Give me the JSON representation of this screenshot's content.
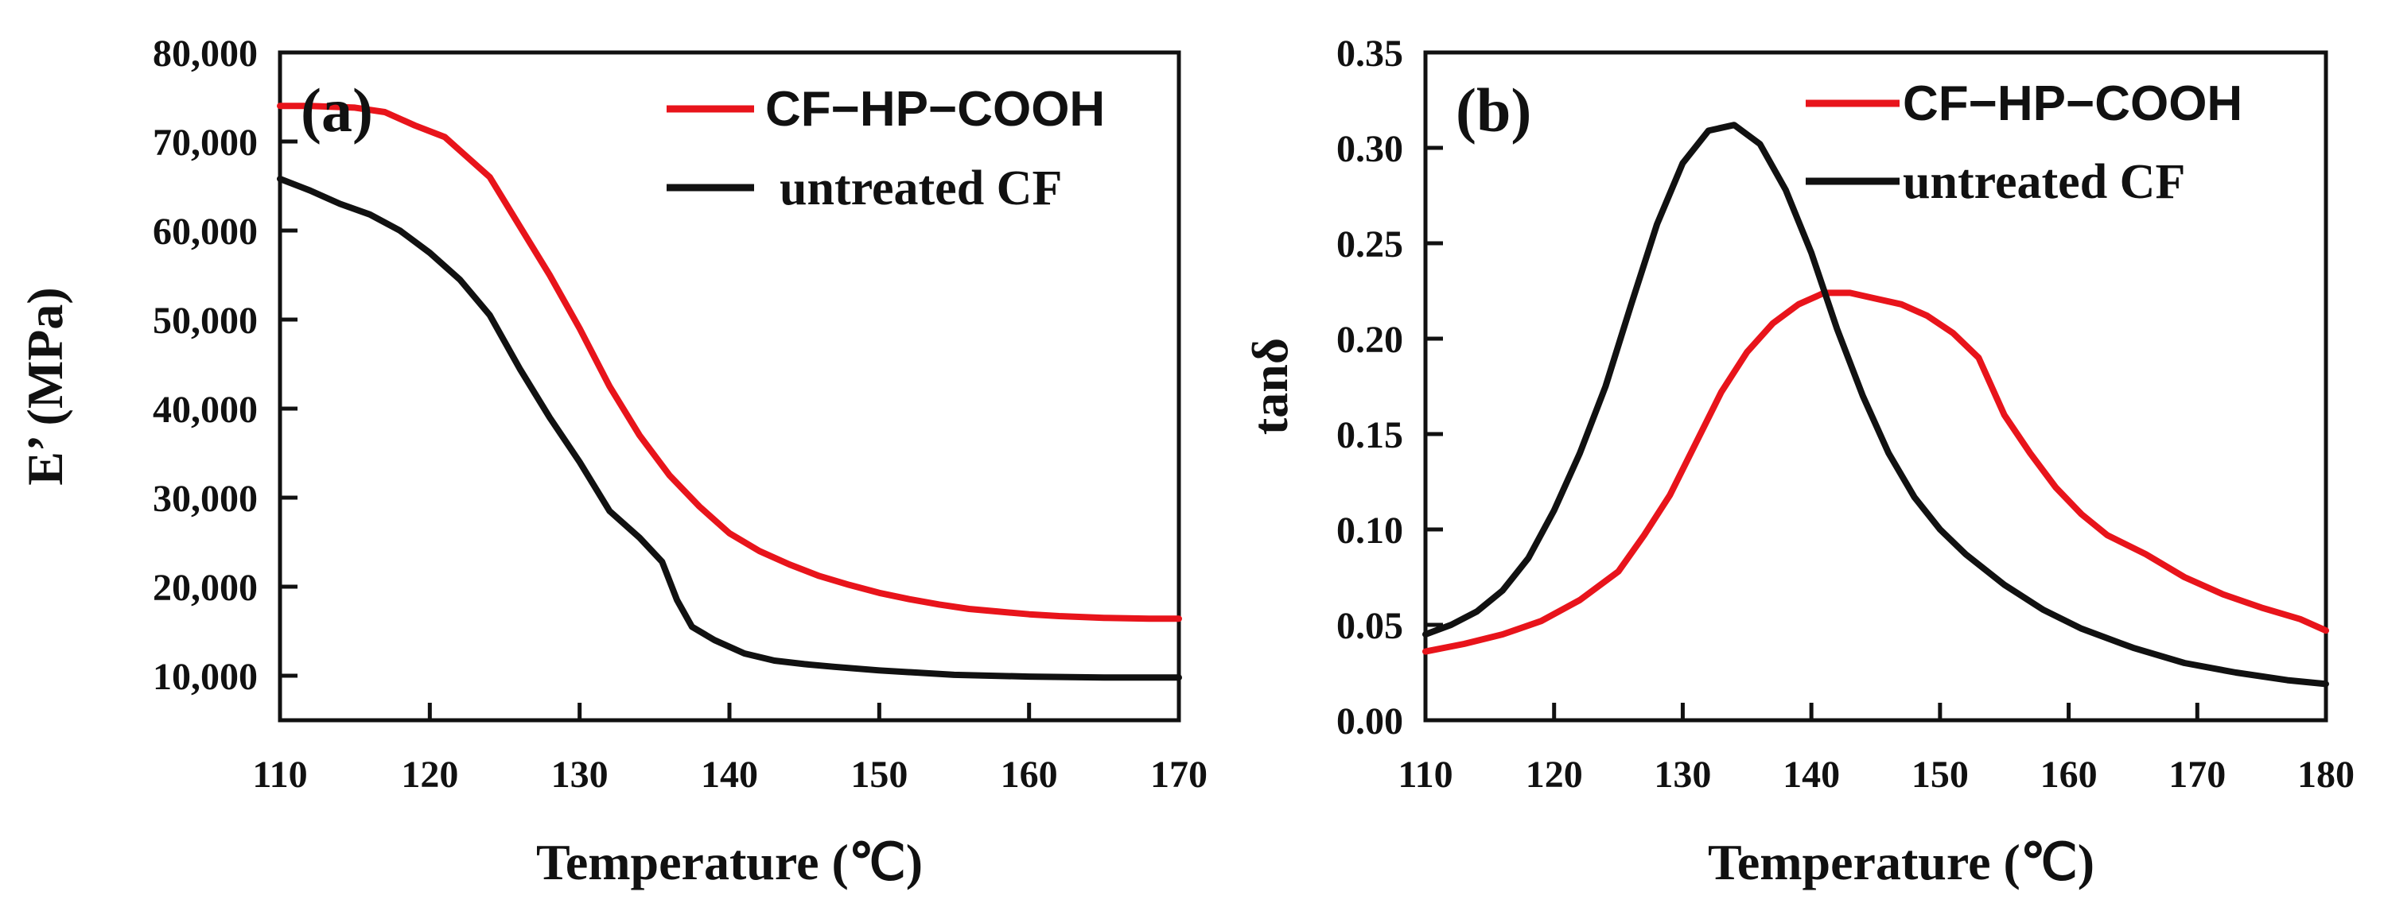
{
  "chart_data": [
    {
      "type": "line",
      "panel_label": "(a)",
      "xlabel": "Temperature (℃)",
      "ylabel": "E’ (MPa)",
      "xlim": [
        110,
        170
      ],
      "ylim": [
        5000,
        80000
      ],
      "x_ticks": [
        "110",
        "120",
        "130",
        "140",
        "150",
        "160",
        "170"
      ],
      "x_tick_values": [
        110,
        120,
        130,
        140,
        150,
        160,
        170
      ],
      "y_ticks": [
        "10,000",
        "20,000",
        "30,000",
        "40,000",
        "50,000",
        "60,000",
        "70,000",
        "80,000"
      ],
      "y_tick_values": [
        10000,
        20000,
        30000,
        40000,
        50000,
        60000,
        70000,
        80000
      ],
      "series": [
        {
          "name": "CF−HP−COOH",
          "color": "#e8141b",
          "points": [
            [
              110,
              74000
            ],
            [
              112,
              74000
            ],
            [
              115,
              73800
            ],
            [
              117,
              73300
            ],
            [
              119,
              71800
            ],
            [
              121,
              70500
            ],
            [
              122,
              69000
            ],
            [
              124,
              66000
            ],
            [
              126,
              60500
            ],
            [
              128,
              55000
            ],
            [
              130,
              49000
            ],
            [
              132,
              42500
            ],
            [
              134,
              37000
            ],
            [
              136,
              32500
            ],
            [
              138,
              29000
            ],
            [
              140,
              26000
            ],
            [
              142,
              24000
            ],
            [
              144,
              22500
            ],
            [
              146,
              21200
            ],
            [
              148,
              20200
            ],
            [
              150,
              19300
            ],
            [
              152,
              18600
            ],
            [
              154,
              18000
            ],
            [
              156,
              17500
            ],
            [
              158,
              17200
            ],
            [
              160,
              16900
            ],
            [
              162,
              16700
            ],
            [
              165,
              16500
            ],
            [
              168,
              16400
            ],
            [
              170,
              16400
            ]
          ]
        },
        {
          "name": "untreated CF",
          "color": "#111111",
          "points": [
            [
              110,
              65800
            ],
            [
              112,
              64500
            ],
            [
              114,
              63000
            ],
            [
              116,
              61800
            ],
            [
              118,
              60000
            ],
            [
              120,
              57500
            ],
            [
              122,
              54500
            ],
            [
              124,
              50500
            ],
            [
              126,
              44500
            ],
            [
              128,
              39000
            ],
            [
              130,
              34000
            ],
            [
              132,
              28500
            ],
            [
              134,
              25500
            ],
            [
              135.5,
              22800
            ],
            [
              136.5,
              18500
            ],
            [
              137.5,
              15500
            ],
            [
              139,
              14000
            ],
            [
              141,
              12500
            ],
            [
              143,
              11700
            ],
            [
              145,
              11300
            ],
            [
              147,
              11000
            ],
            [
              150,
              10600
            ],
            [
              155,
              10100
            ],
            [
              160,
              9900
            ],
            [
              165,
              9800
            ],
            [
              170,
              9800
            ]
          ]
        }
      ]
    },
    {
      "type": "line",
      "panel_label": "(b)",
      "xlabel": "Temperature (℃)",
      "ylabel": "tanδ",
      "xlim": [
        110,
        180
      ],
      "ylim": [
        0,
        0.35
      ],
      "x_ticks": [
        "110",
        "120",
        "130",
        "140",
        "150",
        "160",
        "170",
        "180"
      ],
      "x_tick_values": [
        110,
        120,
        130,
        140,
        150,
        160,
        170,
        180
      ],
      "y_ticks": [
        "0.00",
        "0.05",
        "0.10",
        "0.15",
        "0.20",
        "0.25",
        "0.30",
        "0.35"
      ],
      "y_tick_values": [
        0,
        0.05,
        0.1,
        0.15,
        0.2,
        0.25,
        0.3,
        0.35
      ],
      "series": [
        {
          "name": "CF−HP−COOH",
          "color": "#e8141b",
          "points": [
            [
              110,
              0.036
            ],
            [
              113,
              0.04
            ],
            [
              116,
              0.045
            ],
            [
              119,
              0.052
            ],
            [
              122,
              0.063
            ],
            [
              125,
              0.078
            ],
            [
              127,
              0.097
            ],
            [
              129,
              0.118
            ],
            [
              131,
              0.145
            ],
            [
              133,
              0.172
            ],
            [
              135,
              0.193
            ],
            [
              137,
              0.208
            ],
            [
              139,
              0.218
            ],
            [
              141,
              0.224
            ],
            [
              143,
              0.224
            ],
            [
              145,
              0.221
            ],
            [
              147,
              0.218
            ],
            [
              149,
              0.212
            ],
            [
              151,
              0.203
            ],
            [
              153,
              0.19
            ],
            [
              155,
              0.16
            ],
            [
              157,
              0.14
            ],
            [
              159,
              0.122
            ],
            [
              161,
              0.108
            ],
            [
              163,
              0.097
            ],
            [
              166,
              0.087
            ],
            [
              169,
              0.075
            ],
            [
              172,
              0.066
            ],
            [
              175,
              0.059
            ],
            [
              178,
              0.053
            ],
            [
              180,
              0.047
            ]
          ]
        },
        {
          "name": "untreated CF",
          "color": "#111111",
          "points": [
            [
              110,
              0.045
            ],
            [
              112,
              0.05
            ],
            [
              114,
              0.057
            ],
            [
              116,
              0.068
            ],
            [
              118,
              0.085
            ],
            [
              120,
              0.11
            ],
            [
              122,
              0.14
            ],
            [
              124,
              0.175
            ],
            [
              126,
              0.218
            ],
            [
              128,
              0.26
            ],
            [
              130,
              0.292
            ],
            [
              132,
              0.309
            ],
            [
              134,
              0.312
            ],
            [
              136,
              0.302
            ],
            [
              138,
              0.278
            ],
            [
              140,
              0.245
            ],
            [
              142,
              0.205
            ],
            [
              144,
              0.17
            ],
            [
              146,
              0.14
            ],
            [
              148,
              0.117
            ],
            [
              150,
              0.1
            ],
            [
              152,
              0.087
            ],
            [
              155,
              0.071
            ],
            [
              158,
              0.058
            ],
            [
              161,
              0.048
            ],
            [
              165,
              0.038
            ],
            [
              169,
              0.03
            ],
            [
              173,
              0.025
            ],
            [
              177,
              0.021
            ],
            [
              180,
              0.019
            ]
          ]
        }
      ]
    }
  ]
}
